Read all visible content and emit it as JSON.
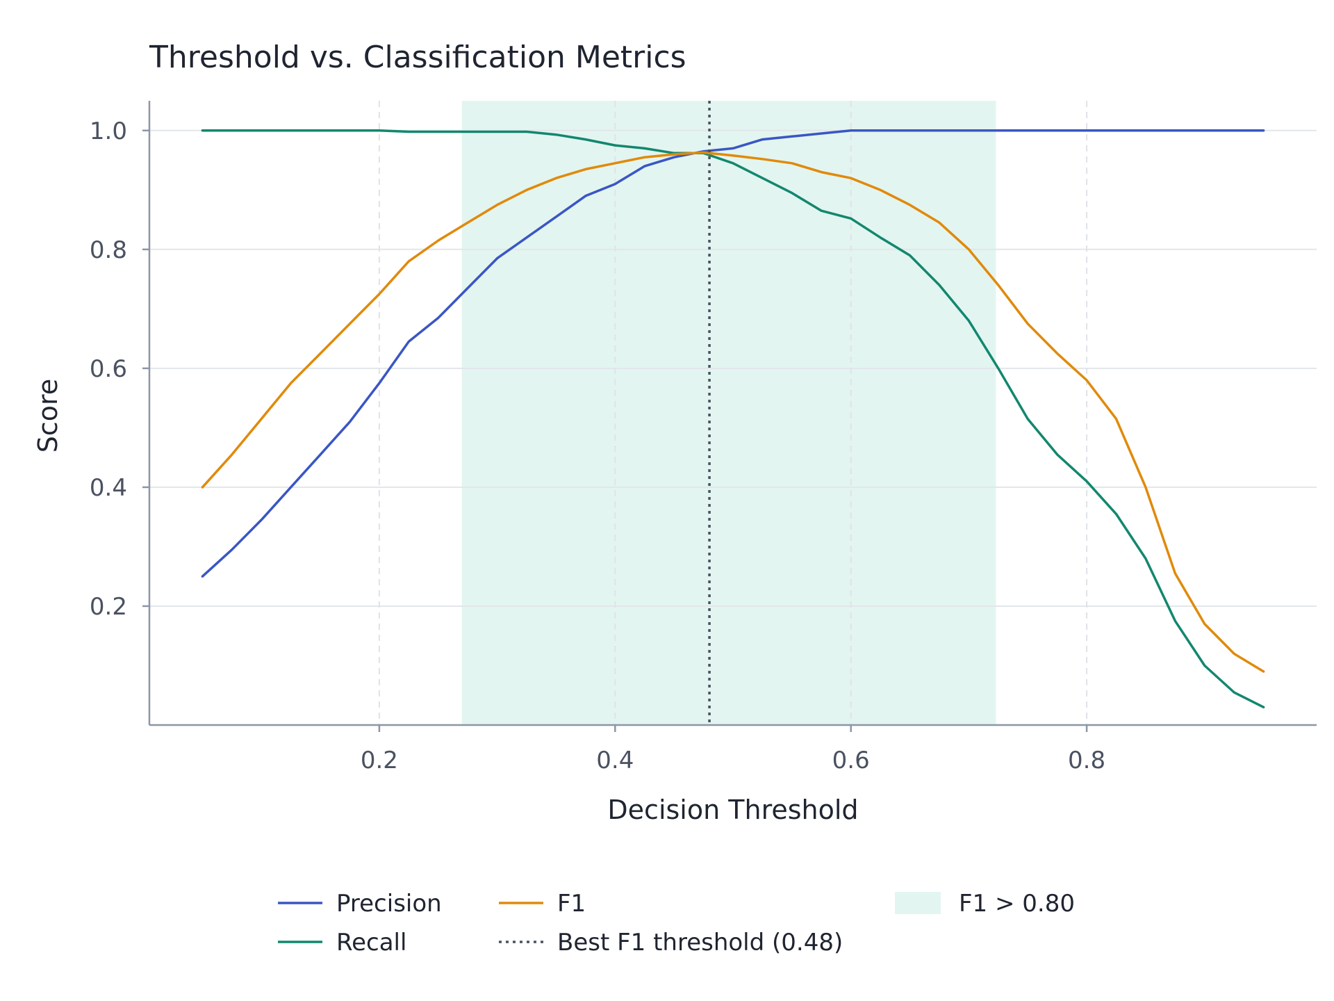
{
  "chart_data": {
    "type": "line",
    "title": "Threshold vs. Classification Metrics",
    "xlabel": "Decision Threshold",
    "ylabel": "Score",
    "xlim": [
      0.005,
      0.995
    ],
    "ylim": [
      0.0,
      1.05
    ],
    "x_ticks": [
      "0.2",
      "0.4",
      "0.6",
      "0.8"
    ],
    "x_tick_values": [
      0.2,
      0.4,
      0.6,
      0.8
    ],
    "y_ticks": [
      "0.2",
      "0.4",
      "0.6",
      "0.8",
      "1.0"
    ],
    "y_tick_values": [
      0.2,
      0.4,
      0.6,
      0.8,
      1.0
    ],
    "grid": true,
    "x": [
      0.05,
      0.075,
      0.1,
      0.125,
      0.15,
      0.175,
      0.2,
      0.225,
      0.25,
      0.275,
      0.3,
      0.325,
      0.35,
      0.375,
      0.4,
      0.425,
      0.45,
      0.475,
      0.5,
      0.525,
      0.55,
      0.575,
      0.6,
      0.625,
      0.65,
      0.675,
      0.7,
      0.725,
      0.75,
      0.775,
      0.8,
      0.825,
      0.85,
      0.875,
      0.9,
      0.925,
      0.95
    ],
    "series": [
      {
        "name": "Precision",
        "color": "#3a56c4",
        "style": "solid",
        "values": [
          0.25,
          0.295,
          0.345,
          0.4,
          0.455,
          0.51,
          0.575,
          0.645,
          0.685,
          0.735,
          0.785,
          0.82,
          0.855,
          0.89,
          0.91,
          0.94,
          0.955,
          0.965,
          0.97,
          0.985,
          0.99,
          0.995,
          1.0,
          1.0,
          1.0,
          1.0,
          1.0,
          1.0,
          1.0,
          1.0,
          1.0,
          1.0,
          1.0,
          1.0,
          1.0,
          1.0,
          1.0
        ]
      },
      {
        "name": "Recall",
        "color": "#12876f",
        "style": "solid",
        "values": [
          1.0,
          1.0,
          1.0,
          1.0,
          1.0,
          1.0,
          1.0,
          0.998,
          0.998,
          0.998,
          0.998,
          0.998,
          0.993,
          0.985,
          0.975,
          0.97,
          0.962,
          0.962,
          0.945,
          0.92,
          0.895,
          0.865,
          0.852,
          0.82,
          0.79,
          0.74,
          0.68,
          0.6,
          0.515,
          0.455,
          0.41,
          0.355,
          0.28,
          0.175,
          0.1,
          0.055,
          0.03
        ]
      },
      {
        "name": "F1",
        "color": "#e08a0b",
        "style": "solid",
        "values": [
          0.4,
          0.455,
          0.515,
          0.575,
          0.625,
          0.675,
          0.725,
          0.78,
          0.815,
          0.845,
          0.875,
          0.9,
          0.92,
          0.935,
          0.945,
          0.955,
          0.96,
          0.963,
          0.958,
          0.952,
          0.945,
          0.93,
          0.92,
          0.9,
          0.875,
          0.845,
          0.8,
          0.74,
          0.675,
          0.625,
          0.58,
          0.515,
          0.4,
          0.255,
          0.17,
          0.12,
          0.09
        ]
      }
    ],
    "reference_line": {
      "label": "Best F1 threshold (0.48)",
      "x": 0.48,
      "color": "#4a5160",
      "style": "dotted"
    },
    "shaded_region": {
      "label": "F1 > 0.80",
      "x_range": [
        0.27,
        0.723
      ],
      "color": "#e3f5f0"
    },
    "legend": {
      "placement": "bottom",
      "items": [
        {
          "label": "Precision",
          "color": "#3a56c4",
          "kind": "solid"
        },
        {
          "label": "F1",
          "color": "#e08a0b",
          "kind": "solid"
        },
        {
          "label": "F1 > 0.80",
          "color": "#e3f5f0",
          "kind": "patch"
        },
        {
          "label": "Recall",
          "color": "#12876f",
          "kind": "solid"
        },
        {
          "label": "Best F1 threshold (0.48)",
          "color": "#4a5160",
          "kind": "dotted"
        }
      ]
    }
  }
}
